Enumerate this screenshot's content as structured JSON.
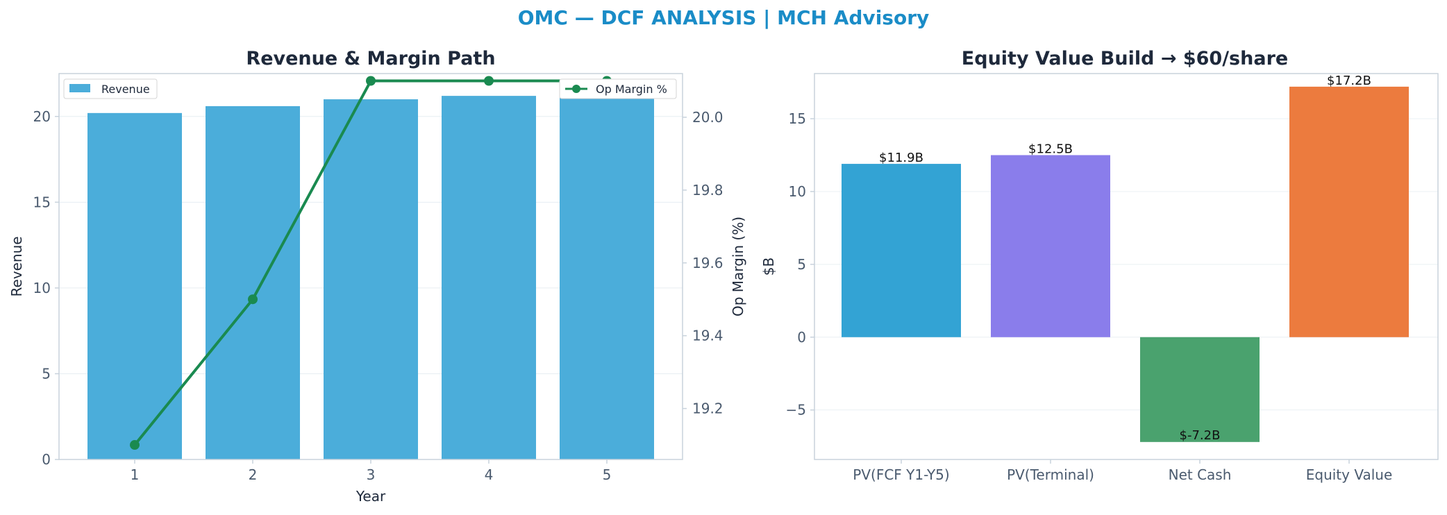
{
  "suptitle": "OMC — DCF ANALYSIS | MCH Advisory",
  "colors": {
    "title": "#1a8cc7",
    "revenue_bar": "#4badda",
    "margin_line": "#1a8a50",
    "grid": "#e6edf2",
    "spine": "#c8d2dc"
  },
  "chart_data": [
    {
      "type": "bar",
      "title": "Revenue & Margin Path",
      "xlabel": "Year",
      "ylabel": "Revenue",
      "y2label": "Op Margin (%)",
      "categories": [
        "1",
        "2",
        "3",
        "4",
        "5"
      ],
      "ylim": [
        0,
        22.5
      ],
      "y2lim": [
        19.06,
        20.12
      ],
      "yticks": [
        0,
        5,
        10,
        15,
        20
      ],
      "y2ticks": [
        19.2,
        19.4,
        19.6,
        19.8,
        20.0
      ],
      "grid": true,
      "series": [
        {
          "name": "Revenue",
          "type": "bar",
          "axis": "left",
          "values": [
            20.2,
            20.6,
            21.0,
            21.2,
            21.4
          ]
        },
        {
          "name": "Op Margin %",
          "type": "line",
          "axis": "right",
          "values": [
            19.1,
            19.5,
            20.1,
            20.1,
            20.1
          ]
        }
      ],
      "legend": [
        "upper-left",
        "upper-right"
      ]
    },
    {
      "type": "bar",
      "title": "Equity Value Build → $60/share",
      "xlabel": "",
      "ylabel": "$B",
      "categories": [
        "PV(FCF Y1-Y5)",
        "PV(Terminal)",
        "Net Cash",
        "Equity Value"
      ],
      "values": [
        11.9,
        12.5,
        -7.2,
        17.2
      ],
      "data_labels": [
        "$11.9B",
        "$12.5B",
        "$-7.2B",
        "$17.2B"
      ],
      "bar_colors": [
        "#33a3d4",
        "#8a7deb",
        "#4aa26e",
        "#ec7b3e"
      ],
      "ylim": [
        -8.4,
        18.1
      ],
      "yticks": [
        -5,
        0,
        5,
        10,
        15
      ],
      "grid": true
    }
  ]
}
